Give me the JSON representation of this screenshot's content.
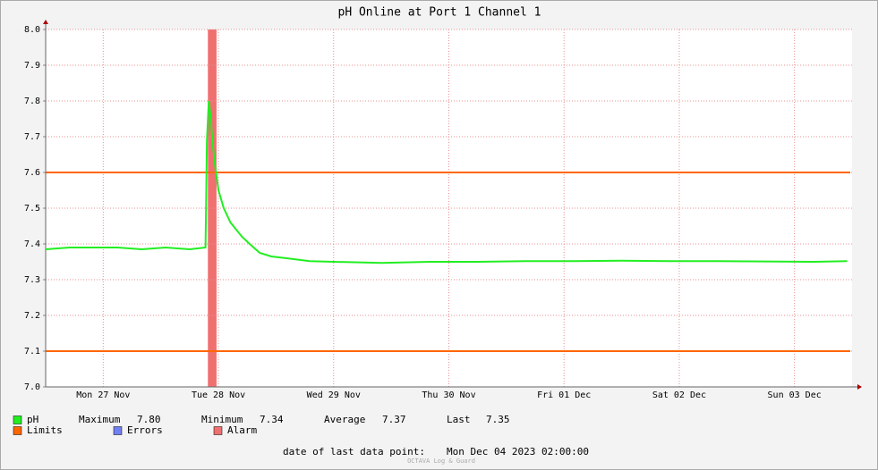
{
  "chart_data": {
    "type": "line",
    "title": "pH Online at Port 1 Channel 1",
    "xlim": [
      0,
      168
    ],
    "xticks": [
      {
        "value": 12,
        "label": "Mon 27 Nov"
      },
      {
        "value": 36,
        "label": "Tue 28 Nov"
      },
      {
        "value": 60,
        "label": "Wed 29 Nov"
      },
      {
        "value": 84,
        "label": "Thu 30 Nov"
      },
      {
        "value": 108,
        "label": "Fri 01 Dec"
      },
      {
        "value": 132,
        "label": "Sat 02 Dec"
      },
      {
        "value": 156,
        "label": "Sun 03 Dec"
      }
    ],
    "ylim": [
      7.0,
      8.0
    ],
    "yticks": [
      {
        "value": 7.0,
        "label": "7.0"
      },
      7.1,
      7.2,
      7.3,
      7.4,
      7.5,
      7.6,
      7.7,
      7.8,
      7.9,
      {
        "value": 8.0,
        "label": "8.0"
      }
    ],
    "grid": true,
    "series": [
      {
        "name": "pH",
        "color": "#22ee22",
        "x": [
          0,
          5,
          10,
          15,
          20,
          25,
          30,
          33.3,
          33.4,
          33.6,
          34.0,
          34.4,
          34.8,
          35.3,
          36.0,
          37.1,
          38.5,
          40.9,
          42.5,
          44.6,
          47,
          50.2,
          55,
          60,
          70,
          80,
          90,
          100,
          110,
          120,
          130,
          140,
          150,
          160,
          167
        ],
        "values": [
          7.385,
          7.39,
          7.39,
          7.39,
          7.385,
          7.39,
          7.385,
          7.39,
          7.48,
          7.69,
          7.8,
          7.75,
          7.68,
          7.62,
          7.55,
          7.5,
          7.46,
          7.42,
          7.4,
          7.375,
          7.365,
          7.36,
          7.352,
          7.35,
          7.347,
          7.35,
          7.35,
          7.352,
          7.352,
          7.353,
          7.352,
          7.352,
          7.351,
          7.35,
          7.352
        ]
      }
    ],
    "limits": {
      "name": "Limits",
      "color": "#ff6600",
      "values": [
        7.6,
        7.1
      ]
    },
    "errors": {
      "name": "Errors",
      "color": "#7080f0"
    },
    "alarm": {
      "name": "Alarm",
      "color": "#f07070",
      "x": [
        33.8,
        35.6
      ]
    },
    "stats": [
      {
        "label": "Maximum",
        "value": "7.80"
      },
      {
        "label": "Minimum",
        "value": "7.34"
      },
      {
        "label": "Average",
        "value": "7.37"
      },
      {
        "label": "Last",
        "value": "7.35"
      }
    ],
    "footer": {
      "label": "date of last data point:",
      "value": "Mon Dec 04 2023 02:00:00"
    },
    "watermark": "OCTAVA Log & Guard"
  }
}
